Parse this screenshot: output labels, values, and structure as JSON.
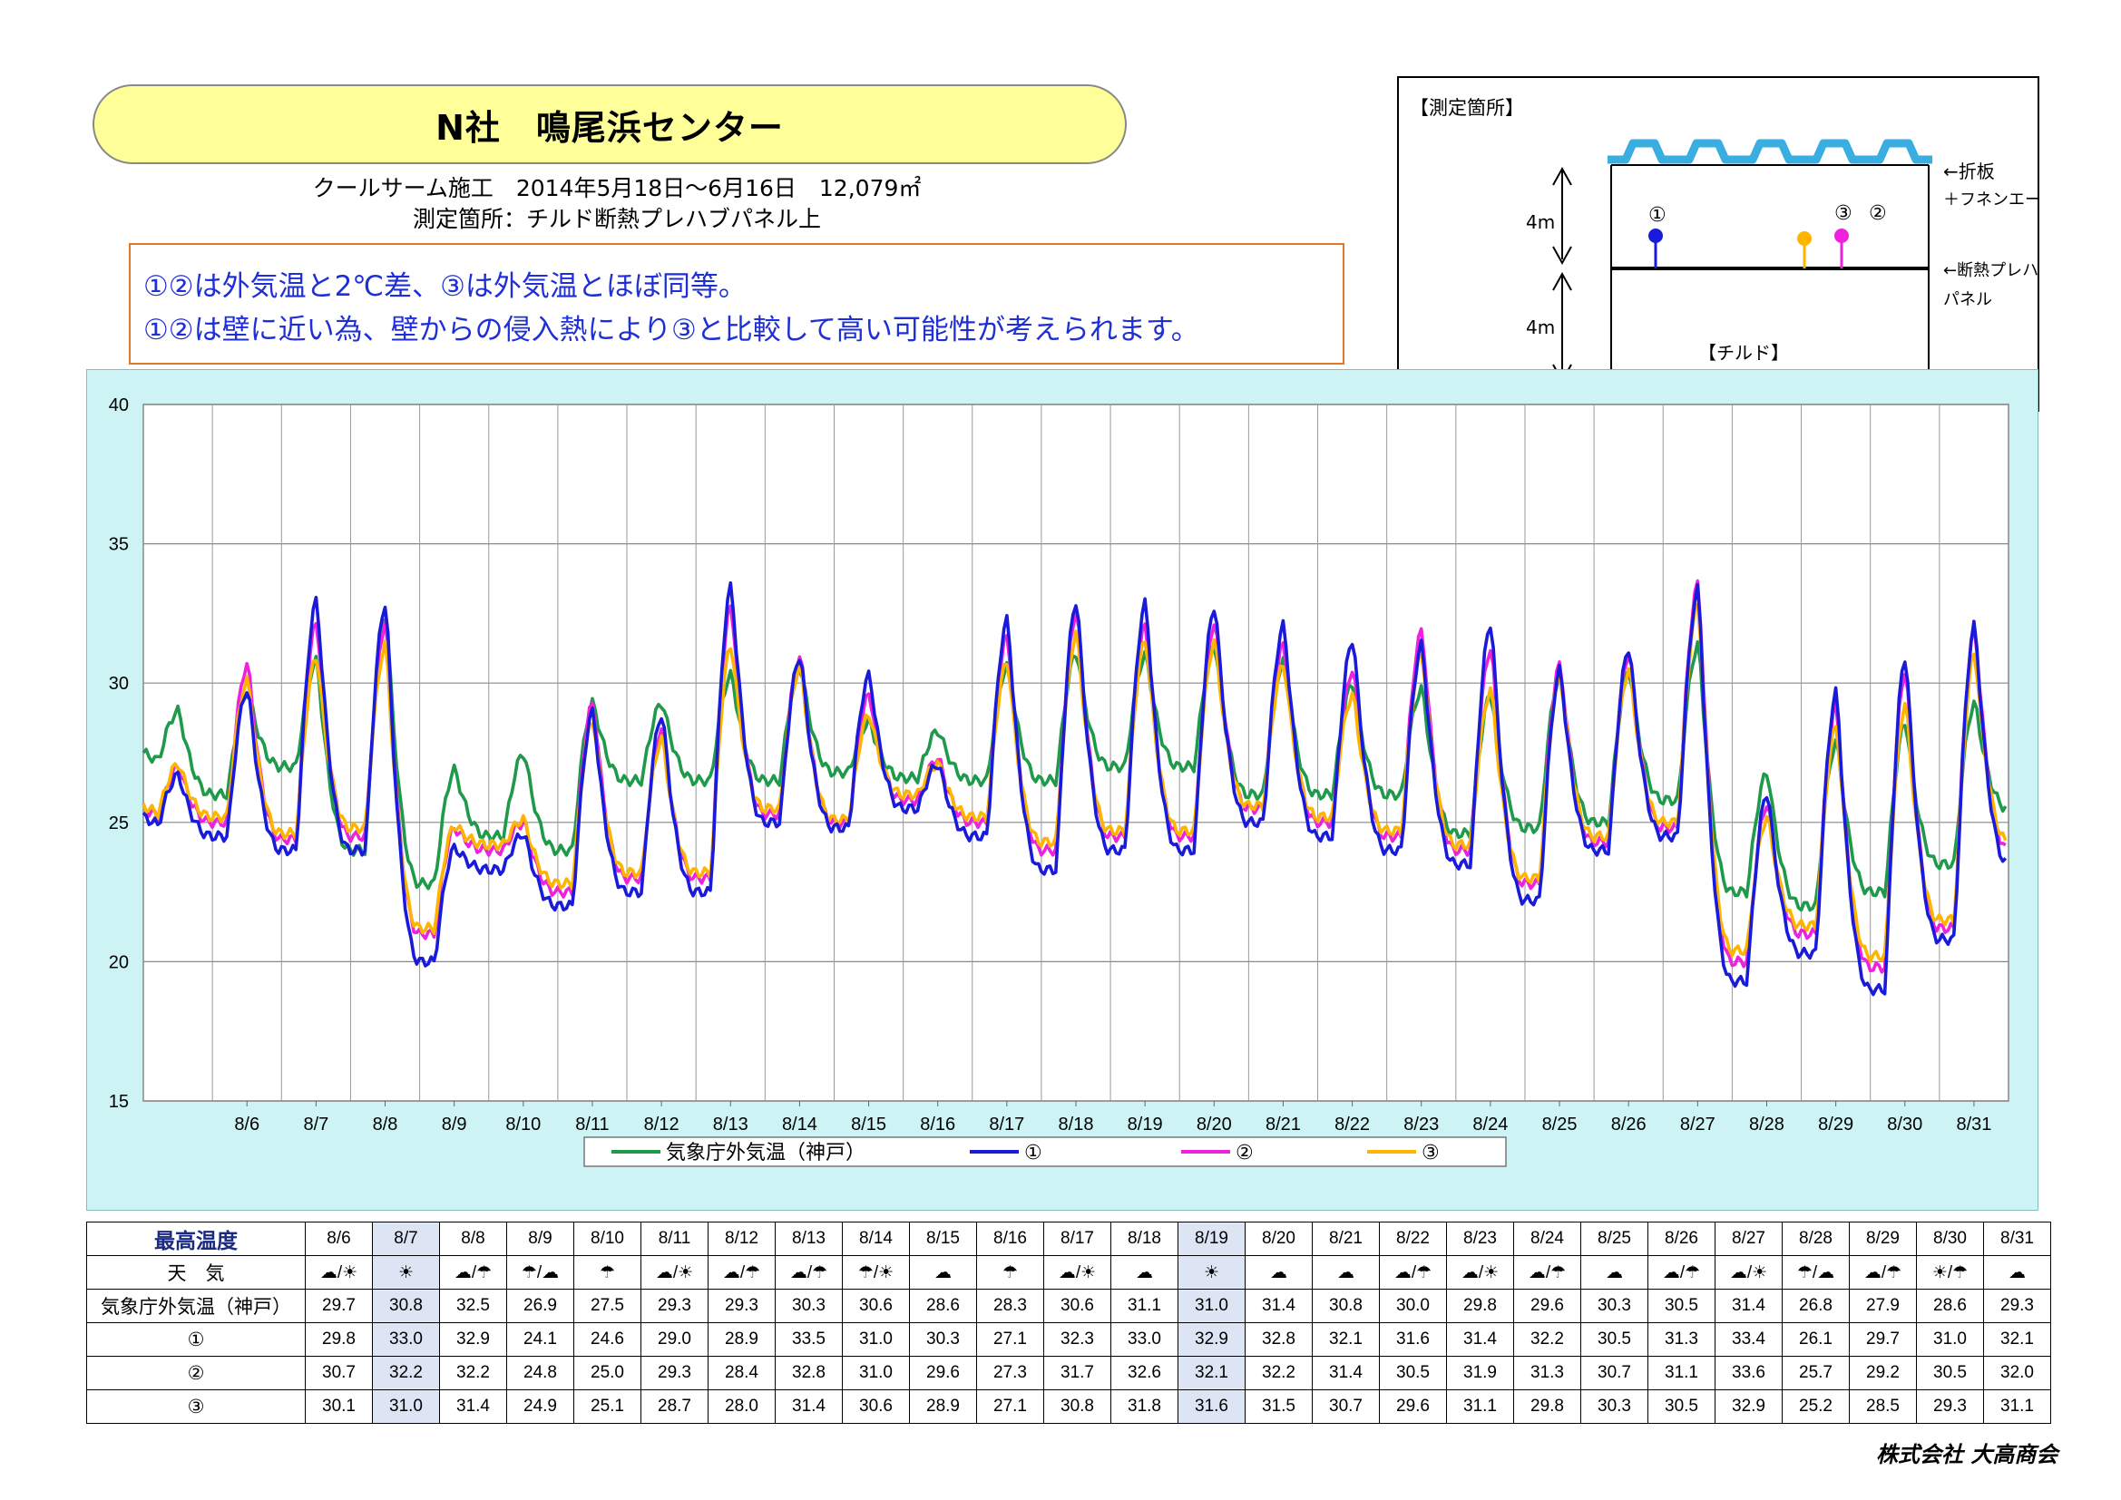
{
  "header": {
    "title": "N社　鳴尾浜センター",
    "subtitle_line1": "クールサーム施工　2014年5月18日～6月16日　12,079㎡",
    "subtitle_line2": "測定箇所：チルド断熱プレハブパネル上"
  },
  "notes": [
    "①②は外気温と2℃差、③は外気温とほぼ同等。",
    "①②は壁に近い為、壁からの侵入熱により③と比較して高い可能性が考えられます。"
  ],
  "diagram": {
    "label": "【測定箇所】",
    "roof_label_1": "←折板",
    "roof_label_2": "＋フネンエース",
    "panel_label_1": "←断熱プレハブ",
    "panel_label_2": "パネル",
    "chilled_label": "【チルド】",
    "height_upper": "4m",
    "height_lower": "4m",
    "sensor_1": "①",
    "sensor_2": "②",
    "sensor_3": "③",
    "colors": {
      "sensor_1": "#1a1adb",
      "sensor_2": "#ee22dd",
      "sensor_3": "#ffb400",
      "roof": "#3aaee0"
    }
  },
  "chart_data": {
    "type": "line",
    "title": "",
    "xlabel": "",
    "ylabel": "",
    "ylim": [
      15,
      40
    ],
    "yticks": [
      15,
      20,
      25,
      30,
      35,
      40
    ],
    "categories": [
      "8/6",
      "8/7",
      "8/8",
      "8/9",
      "8/10",
      "8/11",
      "8/12",
      "8/13",
      "8/14",
      "8/15",
      "8/16",
      "8/17",
      "8/18",
      "8/19",
      "8/20",
      "8/21",
      "8/22",
      "8/23",
      "8/24",
      "8/25",
      "8/26",
      "8/27",
      "8/28",
      "8/29",
      "8/30",
      "8/31"
    ],
    "grid": true,
    "legend_position": "bottom",
    "series": [
      {
        "name": "気象庁外気温（神戸）",
        "color": "#1e9a4a",
        "day_max": [
          29.7,
          30.8,
          32.5,
          26.9,
          27.5,
          29.3,
          29.3,
          30.3,
          30.6,
          28.6,
          28.3,
          30.6,
          31.1,
          31.0,
          31.4,
          30.8,
          30.0,
          29.8,
          29.6,
          30.3,
          30.5,
          31.4,
          26.8,
          27.9,
          28.6,
          29.3
        ],
        "day_min": [
          26.0,
          27.0,
          24.0,
          22.8,
          24.5,
          24.0,
          26.5,
          26.5,
          26.5,
          26.8,
          26.6,
          26.5,
          26.5,
          27.0,
          27.0,
          26.0,
          26.0,
          26.0,
          24.6,
          24.8,
          25.0,
          25.8,
          22.5,
          22.0,
          22.5,
          23.5
        ],
        "start": 27.5,
        "end": 25.5
      },
      {
        "name": "①",
        "color": "#1a1adb",
        "day_max": [
          29.8,
          33.0,
          32.9,
          24.1,
          24.6,
          29.0,
          28.9,
          33.5,
          31.0,
          30.3,
          27.1,
          32.3,
          33.0,
          32.9,
          32.8,
          32.1,
          31.6,
          31.4,
          32.2,
          30.5,
          31.3,
          33.4,
          26.1,
          29.7,
          31.0,
          32.1
        ],
        "day_min": [
          24.5,
          24.0,
          24.0,
          20.0,
          23.3,
          22.0,
          22.5,
          22.5,
          25.0,
          24.8,
          25.5,
          24.5,
          23.3,
          24.0,
          24.0,
          25.0,
          24.5,
          24.0,
          23.5,
          22.2,
          24.0,
          24.5,
          19.3,
          20.3,
          19.0,
          20.8
        ],
        "start": 25.2,
        "end": 23.5
      },
      {
        "name": "②",
        "color": "#ee22dd",
        "day_max": [
          30.7,
          32.2,
          32.2,
          24.8,
          25.0,
          29.3,
          28.4,
          32.8,
          31.0,
          29.6,
          27.3,
          31.7,
          32.6,
          32.1,
          32.2,
          31.4,
          30.5,
          31.9,
          31.3,
          30.7,
          31.1,
          33.6,
          25.7,
          29.2,
          30.5,
          32.0
        ],
        "day_min": [
          25.0,
          24.4,
          24.5,
          21.0,
          24.0,
          22.5,
          23.0,
          23.0,
          25.3,
          25.0,
          25.8,
          25.0,
          24.0,
          24.5,
          24.5,
          25.5,
          25.0,
          24.5,
          24.0,
          22.8,
          24.3,
          24.8,
          20.0,
          21.0,
          19.8,
          21.2
        ],
        "start": 25.5,
        "end": 24.0
      },
      {
        "name": "③",
        "color": "#ffb400",
        "day_max": [
          30.1,
          31.0,
          31.4,
          24.9,
          25.1,
          28.7,
          28.0,
          31.4,
          30.6,
          28.9,
          27.1,
          30.8,
          31.8,
          31.6,
          31.5,
          30.7,
          29.6,
          31.1,
          29.8,
          30.3,
          30.5,
          32.9,
          25.2,
          28.5,
          29.3,
          31.1
        ],
        "day_min": [
          25.2,
          24.6,
          24.8,
          21.2,
          24.2,
          22.8,
          23.2,
          23.2,
          25.5,
          25.1,
          26.0,
          25.2,
          24.3,
          24.7,
          24.7,
          25.6,
          25.2,
          24.7,
          24.2,
          23.0,
          24.5,
          25.0,
          20.4,
          21.3,
          20.2,
          21.5
        ],
        "start": 25.6,
        "end": 24.3
      }
    ]
  },
  "legend": {
    "items": [
      {
        "label": "気象庁外気温（神戸）",
        "color": "#1e9a4a"
      },
      {
        "label": "①",
        "color": "#1a1adb"
      },
      {
        "label": "②",
        "color": "#ee22dd"
      },
      {
        "label": "③",
        "color": "#ffb400"
      }
    ]
  },
  "table": {
    "header_label": "最高温度",
    "dates": [
      "8/6",
      "8/7",
      "8/8",
      "8/9",
      "8/10",
      "8/11",
      "8/12",
      "8/13",
      "8/14",
      "8/15",
      "8/16",
      "8/17",
      "8/18",
      "8/19",
      "8/20",
      "8/21",
      "8/22",
      "8/23",
      "8/24",
      "8/25",
      "8/26",
      "8/27",
      "8/28",
      "8/29",
      "8/30",
      "8/31"
    ],
    "highlight_columns": [
      1,
      13
    ],
    "weather_label": "天　気",
    "weather_icons": [
      "cloud/sun",
      "sun",
      "cloud/umbrella",
      "umbrella/cloud",
      "umbrella",
      "cloud/sun",
      "cloud/umbrella",
      "cloud/umbrella",
      "umbrella/sun",
      "cloud",
      "umbrella",
      "cloud/sun",
      "cloud",
      "sun",
      "cloud",
      "cloud",
      "cloud/umbrella",
      "cloud/sun",
      "cloud/umbrella",
      "cloud",
      "cloud/umbrella",
      "cloud/sun",
      "umbrella/cloud",
      "cloud/umbrella",
      "sun/umbrella",
      "cloud"
    ],
    "rows": [
      {
        "label": "気象庁外気温（神戸）",
        "values": [
          "29.7",
          "30.8",
          "32.5",
          "26.9",
          "27.5",
          "29.3",
          "29.3",
          "30.3",
          "30.6",
          "28.6",
          "28.3",
          "30.6",
          "31.1",
          "31.0",
          "31.4",
          "30.8",
          "30.0",
          "29.8",
          "29.6",
          "30.3",
          "30.5",
          "31.4",
          "26.8",
          "27.9",
          "28.6",
          "29.3"
        ]
      },
      {
        "label": "①",
        "values": [
          "29.8",
          "33.0",
          "32.9",
          "24.1",
          "24.6",
          "29.0",
          "28.9",
          "33.5",
          "31.0",
          "30.3",
          "27.1",
          "32.3",
          "33.0",
          "32.9",
          "32.8",
          "32.1",
          "31.6",
          "31.4",
          "32.2",
          "30.5",
          "31.3",
          "33.4",
          "26.1",
          "29.7",
          "31.0",
          "32.1"
        ]
      },
      {
        "label": "②",
        "values": [
          "30.7",
          "32.2",
          "32.2",
          "24.8",
          "25.0",
          "29.3",
          "28.4",
          "32.8",
          "31.0",
          "29.6",
          "27.3",
          "31.7",
          "32.6",
          "32.1",
          "32.2",
          "31.4",
          "30.5",
          "31.9",
          "31.3",
          "30.7",
          "31.1",
          "33.6",
          "25.7",
          "29.2",
          "30.5",
          "32.0"
        ]
      },
      {
        "label": "③",
        "values": [
          "30.1",
          "31.0",
          "31.4",
          "24.9",
          "25.1",
          "28.7",
          "28.0",
          "31.4",
          "30.6",
          "28.9",
          "27.1",
          "30.8",
          "31.8",
          "31.6",
          "31.5",
          "30.7",
          "29.6",
          "31.1",
          "29.8",
          "30.3",
          "30.5",
          "32.9",
          "25.2",
          "28.5",
          "29.3",
          "31.1"
        ]
      }
    ]
  },
  "footer": {
    "company": "株式会社 大高商会"
  }
}
